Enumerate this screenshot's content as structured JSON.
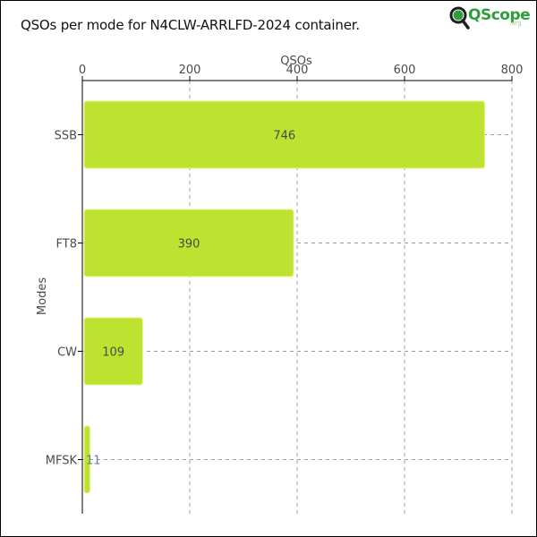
{
  "title": "QSOs per mode for N4CLW-ARRLFD-2024 container.",
  "logo": {
    "text": "QScope",
    "suffix": ".org"
  },
  "colors": {
    "bar": "#bde22f",
    "bar_stroke": "#e6f58a",
    "grid": "#9a9a9a",
    "axis": "#000000",
    "label": "#4a4a4a"
  },
  "chart_data": {
    "type": "bar",
    "orientation": "horizontal",
    "categories": [
      "SSB",
      "FT8",
      "CW",
      "MFSK"
    ],
    "values": [
      746,
      390,
      109,
      11
    ],
    "title": "QSOs per mode for N4CLW-ARRLFD-2024 container.",
    "xlabel": "QSOs",
    "ylabel": "Modes",
    "xlim": [
      0,
      800
    ],
    "xticks": [
      0,
      200,
      400,
      600,
      800
    ],
    "x_axis_position": "top",
    "grid": true,
    "data_labels": true
  }
}
